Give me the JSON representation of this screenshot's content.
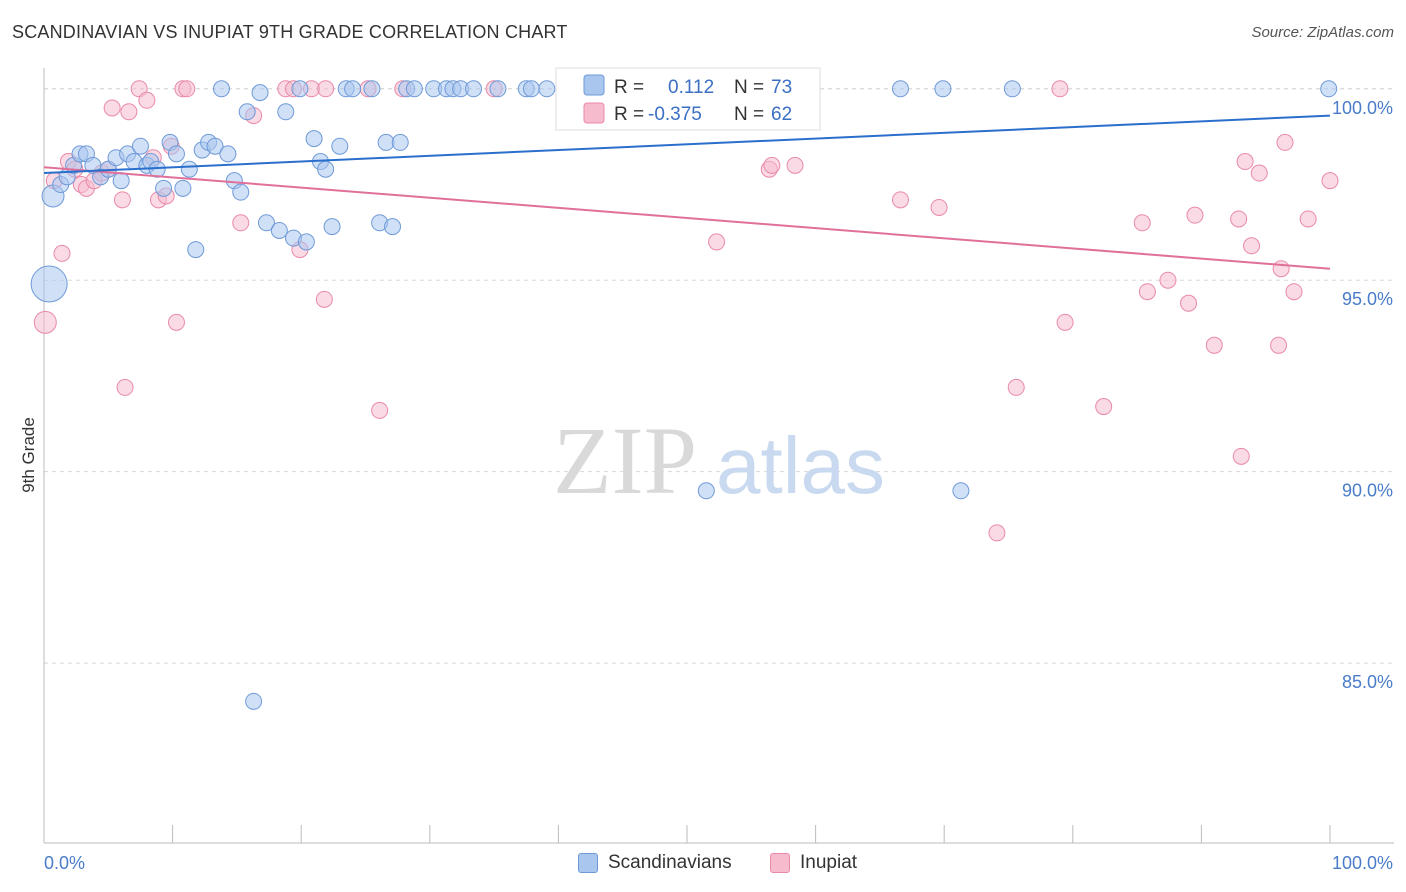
{
  "header": {
    "title": "SCANDINAVIAN VS INUPIAT 9TH GRADE CORRELATION CHART",
    "source": "Source: ZipAtlas.com"
  },
  "watermark": {
    "zip": "ZIP",
    "atlas": "atlas"
  },
  "legend_top": {
    "rows": [
      {
        "r_label": "R =",
        "r_value": "0.112",
        "n_label": "N =",
        "n_value": "73"
      },
      {
        "r_label": "R =",
        "r_value": "-0.375",
        "n_label": "N =",
        "n_value": "62"
      }
    ]
  },
  "colors": {
    "scand_fill": "#a9c6ef",
    "scand_stroke": "#6f9ad8",
    "scand_line": "#2b6fcc",
    "inup_fill": "#f6bccd",
    "inup_stroke": "#e98aa8",
    "inup_line": "#e0709a",
    "tick_text": "#4a7cc9",
    "grid": "#d8d8d8"
  },
  "chart_data": {
    "type": "scatter",
    "title": "SCANDINAVIAN VS INUPIAT 9TH GRADE CORRELATION CHART",
    "xlabel": "",
    "ylabel": "9th Grade",
    "xlim": [
      0,
      100
    ],
    "ylim": [
      80.3,
      100.7
    ],
    "x_tick_labels": [
      "0.0%",
      "100.0%"
    ],
    "y_ticks": [
      85,
      90,
      95,
      100
    ],
    "y_tick_labels": [
      "85.0%",
      "90.0%",
      "95.0%",
      "100.0%"
    ],
    "grid": true,
    "legend": "top-center",
    "series": [
      {
        "name": "Scandinavians",
        "r": 0.112,
        "n": 73,
        "trend": {
          "x": [
            0,
            100
          ],
          "y": [
            97.8,
            99.3
          ]
        },
        "points": [
          {
            "x": 0.7,
            "y": 97.2,
            "s": 11
          },
          {
            "x": 0.4,
            "y": 94.9,
            "s": 18
          },
          {
            "x": 1.3,
            "y": 97.5,
            "s": 8
          },
          {
            "x": 1.8,
            "y": 97.7,
            "s": 8
          },
          {
            "x": 2.3,
            "y": 98.0,
            "s": 8
          },
          {
            "x": 2.8,
            "y": 98.3,
            "s": 8
          },
          {
            "x": 3.3,
            "y": 98.3,
            "s": 8
          },
          {
            "x": 3.8,
            "y": 98.0,
            "s": 8
          },
          {
            "x": 4.4,
            "y": 97.7,
            "s": 8
          },
          {
            "x": 5.0,
            "y": 97.9,
            "s": 8
          },
          {
            "x": 5.6,
            "y": 98.2,
            "s": 8
          },
          {
            "x": 6.0,
            "y": 97.6,
            "s": 8
          },
          {
            "x": 6.5,
            "y": 98.3,
            "s": 8
          },
          {
            "x": 7.0,
            "y": 98.1,
            "s": 8
          },
          {
            "x": 7.5,
            "y": 98.5,
            "s": 8
          },
          {
            "x": 8.0,
            "y": 98.0,
            "s": 8
          },
          {
            "x": 8.3,
            "y": 98.1,
            "s": 8
          },
          {
            "x": 8.8,
            "y": 97.9,
            "s": 8
          },
          {
            "x": 9.3,
            "y": 97.4,
            "s": 8
          },
          {
            "x": 9.8,
            "y": 98.6,
            "s": 8
          },
          {
            "x": 10.3,
            "y": 98.3,
            "s": 8
          },
          {
            "x": 10.8,
            "y": 97.4,
            "s": 8
          },
          {
            "x": 11.3,
            "y": 97.9,
            "s": 8
          },
          {
            "x": 11.8,
            "y": 95.8,
            "s": 8
          },
          {
            "x": 12.3,
            "y": 98.4,
            "s": 8
          },
          {
            "x": 12.8,
            "y": 98.6,
            "s": 8
          },
          {
            "x": 13.3,
            "y": 98.5,
            "s": 8
          },
          {
            "x": 13.8,
            "y": 100.0,
            "s": 8
          },
          {
            "x": 14.3,
            "y": 98.3,
            "s": 8
          },
          {
            "x": 14.8,
            "y": 97.6,
            "s": 8
          },
          {
            "x": 15.3,
            "y": 97.3,
            "s": 8
          },
          {
            "x": 15.8,
            "y": 99.4,
            "s": 8
          },
          {
            "x": 16.3,
            "y": 84.0,
            "s": 8
          },
          {
            "x": 16.8,
            "y": 99.9,
            "s": 8
          },
          {
            "x": 17.3,
            "y": 96.5,
            "s": 8
          },
          {
            "x": 18.3,
            "y": 96.3,
            "s": 8
          },
          {
            "x": 18.8,
            "y": 99.4,
            "s": 8
          },
          {
            "x": 19.4,
            "y": 96.1,
            "s": 8
          },
          {
            "x": 19.9,
            "y": 100.0,
            "s": 8
          },
          {
            "x": 20.4,
            "y": 96.0,
            "s": 8
          },
          {
            "x": 21.0,
            "y": 98.7,
            "s": 8
          },
          {
            "x": 21.5,
            "y": 98.1,
            "s": 8
          },
          {
            "x": 21.9,
            "y": 97.9,
            "s": 8
          },
          {
            "x": 22.4,
            "y": 96.4,
            "s": 8
          },
          {
            "x": 23.0,
            "y": 98.5,
            "s": 8
          },
          {
            "x": 23.5,
            "y": 100.0,
            "s": 8
          },
          {
            "x": 24.0,
            "y": 100.0,
            "s": 8
          },
          {
            "x": 25.5,
            "y": 100.0,
            "s": 8
          },
          {
            "x": 26.1,
            "y": 96.5,
            "s": 8
          },
          {
            "x": 26.6,
            "y": 98.6,
            "s": 8
          },
          {
            "x": 27.1,
            "y": 96.4,
            "s": 8
          },
          {
            "x": 27.7,
            "y": 98.6,
            "s": 8
          },
          {
            "x": 28.2,
            "y": 100.0,
            "s": 8
          },
          {
            "x": 28.8,
            "y": 100.0,
            "s": 8
          },
          {
            "x": 30.3,
            "y": 100.0,
            "s": 8
          },
          {
            "x": 31.3,
            "y": 100.0,
            "s": 8
          },
          {
            "x": 31.8,
            "y": 100.0,
            "s": 8
          },
          {
            "x": 32.4,
            "y": 100.0,
            "s": 8
          },
          {
            "x": 33.4,
            "y": 100.0,
            "s": 8
          },
          {
            "x": 35.3,
            "y": 100.0,
            "s": 8
          },
          {
            "x": 37.5,
            "y": 100.0,
            "s": 8
          },
          {
            "x": 37.9,
            "y": 100.0,
            "s": 8
          },
          {
            "x": 39.1,
            "y": 100.0,
            "s": 8
          },
          {
            "x": 42.9,
            "y": 100.0,
            "s": 8
          },
          {
            "x": 43.5,
            "y": 100.0,
            "s": 8
          },
          {
            "x": 46.0,
            "y": 100.0,
            "s": 8
          },
          {
            "x": 48.0,
            "y": 100.0,
            "s": 8
          },
          {
            "x": 52.0,
            "y": 100.0,
            "s": 8
          },
          {
            "x": 51.5,
            "y": 89.5,
            "s": 8
          },
          {
            "x": 71.3,
            "y": 89.5,
            "s": 8
          },
          {
            "x": 66.6,
            "y": 100.0,
            "s": 8
          },
          {
            "x": 69.9,
            "y": 100.0,
            "s": 8
          },
          {
            "x": 75.3,
            "y": 100.0,
            "s": 8
          },
          {
            "x": 99.9,
            "y": 100.0,
            "s": 8
          }
        ]
      },
      {
        "name": "Inupiat",
        "r": -0.375,
        "n": 62,
        "trend": {
          "x": [
            0,
            100
          ],
          "y": [
            97.95,
            95.3
          ]
        },
        "points": [
          {
            "x": 0.1,
            "y": 93.9,
            "s": 11
          },
          {
            "x": 0.8,
            "y": 97.6,
            "s": 8
          },
          {
            "x": 1.4,
            "y": 95.7,
            "s": 8
          },
          {
            "x": 1.9,
            "y": 98.1,
            "s": 8
          },
          {
            "x": 2.4,
            "y": 97.9,
            "s": 8
          },
          {
            "x": 2.9,
            "y": 97.5,
            "s": 8
          },
          {
            "x": 3.3,
            "y": 97.4,
            "s": 8
          },
          {
            "x": 3.9,
            "y": 97.6,
            "s": 8
          },
          {
            "x": 4.5,
            "y": 97.8,
            "s": 8
          },
          {
            "x": 5.0,
            "y": 97.9,
            "s": 8
          },
          {
            "x": 5.3,
            "y": 99.5,
            "s": 8
          },
          {
            "x": 6.1,
            "y": 97.1,
            "s": 8
          },
          {
            "x": 6.3,
            "y": 92.2,
            "s": 8
          },
          {
            "x": 6.6,
            "y": 99.4,
            "s": 8
          },
          {
            "x": 7.4,
            "y": 100.0,
            "s": 8
          },
          {
            "x": 8.0,
            "y": 99.7,
            "s": 8
          },
          {
            "x": 8.5,
            "y": 98.2,
            "s": 8
          },
          {
            "x": 8.9,
            "y": 97.1,
            "s": 8
          },
          {
            "x": 9.5,
            "y": 97.2,
            "s": 8
          },
          {
            "x": 9.9,
            "y": 98.5,
            "s": 8
          },
          {
            "x": 10.3,
            "y": 93.9,
            "s": 8
          },
          {
            "x": 10.8,
            "y": 100.0,
            "s": 8
          },
          {
            "x": 11.1,
            "y": 100.0,
            "s": 8
          },
          {
            "x": 15.3,
            "y": 96.5,
            "s": 8
          },
          {
            "x": 16.3,
            "y": 99.3,
            "s": 8
          },
          {
            "x": 18.8,
            "y": 100.0,
            "s": 8
          },
          {
            "x": 19.4,
            "y": 100.0,
            "s": 8
          },
          {
            "x": 19.9,
            "y": 95.8,
            "s": 8
          },
          {
            "x": 20.8,
            "y": 100.0,
            "s": 8
          },
          {
            "x": 21.8,
            "y": 94.5,
            "s": 8
          },
          {
            "x": 21.9,
            "y": 100.0,
            "s": 8
          },
          {
            "x": 25.2,
            "y": 100.0,
            "s": 8
          },
          {
            "x": 26.1,
            "y": 91.6,
            "s": 8
          },
          {
            "x": 27.9,
            "y": 100.0,
            "s": 8
          },
          {
            "x": 35.0,
            "y": 100.0,
            "s": 8
          },
          {
            "x": 47.5,
            "y": 100.0,
            "s": 8
          },
          {
            "x": 50.5,
            "y": 100.0,
            "s": 8
          },
          {
            "x": 52.3,
            "y": 96.0,
            "s": 8
          },
          {
            "x": 56.4,
            "y": 97.9,
            "s": 8
          },
          {
            "x": 56.6,
            "y": 98.0,
            "s": 8
          },
          {
            "x": 58.4,
            "y": 98.0,
            "s": 8
          },
          {
            "x": 66.6,
            "y": 97.1,
            "s": 8
          },
          {
            "x": 69.6,
            "y": 96.9,
            "s": 8
          },
          {
            "x": 74.1,
            "y": 88.4,
            "s": 8
          },
          {
            "x": 75.6,
            "y": 92.2,
            "s": 8
          },
          {
            "x": 79.0,
            "y": 100.0,
            "s": 8
          },
          {
            "x": 79.4,
            "y": 93.9,
            "s": 8
          },
          {
            "x": 82.4,
            "y": 91.7,
            "s": 8
          },
          {
            "x": 85.4,
            "y": 96.5,
            "s": 8
          },
          {
            "x": 85.8,
            "y": 94.7,
            "s": 8
          },
          {
            "x": 87.4,
            "y": 95.0,
            "s": 8
          },
          {
            "x": 89.0,
            "y": 94.4,
            "s": 8
          },
          {
            "x": 89.5,
            "y": 96.7,
            "s": 8
          },
          {
            "x": 91.0,
            "y": 93.3,
            "s": 8
          },
          {
            "x": 92.9,
            "y": 96.6,
            "s": 8
          },
          {
            "x": 93.1,
            "y": 90.4,
            "s": 8
          },
          {
            "x": 93.4,
            "y": 98.1,
            "s": 8
          },
          {
            "x": 93.9,
            "y": 95.9,
            "s": 8
          },
          {
            "x": 94.5,
            "y": 97.8,
            "s": 8
          },
          {
            "x": 96.0,
            "y": 93.3,
            "s": 8
          },
          {
            "x": 96.5,
            "y": 98.6,
            "s": 8
          },
          {
            "x": 97.2,
            "y": 94.7,
            "s": 8
          },
          {
            "x": 98.3,
            "y": 96.6,
            "s": 8
          },
          {
            "x": 100.0,
            "y": 97.6,
            "s": 8
          },
          {
            "x": 96.2,
            "y": 95.3,
            "s": 8
          }
        ]
      }
    ]
  },
  "legend_bottom": {
    "items": [
      "Scandinavians",
      "Inupiat"
    ]
  }
}
